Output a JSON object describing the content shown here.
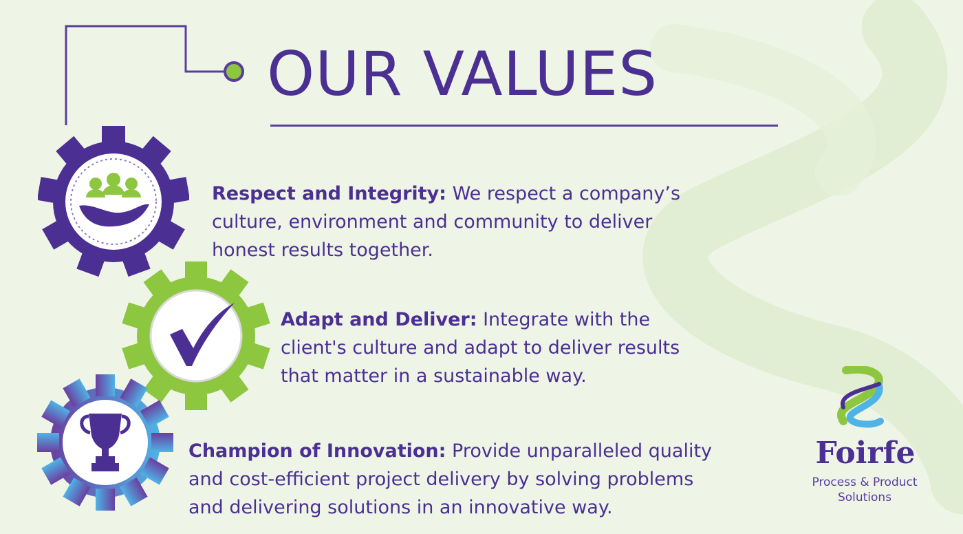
{
  "title": "OUR VALUES",
  "values": [
    {
      "label": "Respect and Integrity:",
      "text": "  We respect a company’s\n culture, environment and community to deliver\nhonest results together.",
      "icon": "hands-people-icon"
    },
    {
      "label": "Adapt and Deliver:",
      "text": " Integrate with the\n client's culture and adapt to deliver results\nthat matter in a sustainable way.",
      "icon": "checkmark-icon"
    },
    {
      "label": "Champion of Innovation:",
      "text": " Provide unparalleled quality\n and cost-efficient project delivery by solving problems\nand delivering solutions in an innovative way.",
      "icon": "trophy-icon"
    }
  ],
  "logo": {
    "name": "Foirfe",
    "tagline": "Process & Product\nSolutions"
  },
  "colors": {
    "purple": "#4b2f93",
    "green": "#8dc63f",
    "blue": "#4fb3e6",
    "background": "#eef5e6"
  }
}
